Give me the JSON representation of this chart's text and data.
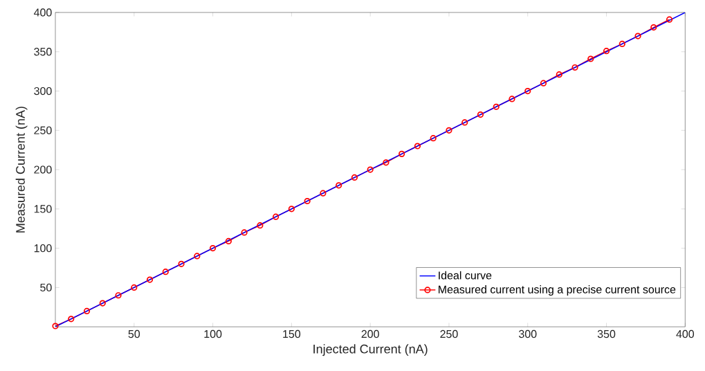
{
  "chart_data": {
    "type": "line",
    "xlabel": "Injected Current (nA)",
    "ylabel": "Measured Current (nA)",
    "xlim": [
      0,
      400
    ],
    "ylim": [
      0,
      400
    ],
    "xticks": [
      50,
      100,
      150,
      200,
      250,
      300,
      350,
      400
    ],
    "yticks": [
      50,
      100,
      150,
      200,
      250,
      300,
      350,
      400
    ],
    "grid": false,
    "legend": "bottom right",
    "line_style": "solid",
    "series": [
      {
        "name": "Ideal curve",
        "color": "#0000ff",
        "marker": "none",
        "x": [
          0,
          400
        ],
        "values": [
          0,
          400
        ]
      },
      {
        "name": "Measured current using a precise current source",
        "color": "#ff0000",
        "marker": "circle",
        "x": [
          0,
          10,
          20,
          30,
          40,
          50,
          60,
          70,
          80,
          90,
          100,
          110,
          120,
          130,
          140,
          150,
          160,
          170,
          180,
          190,
          200,
          210,
          220,
          230,
          240,
          250,
          260,
          270,
          280,
          290,
          300,
          310,
          320,
          330,
          340,
          350,
          360,
          370,
          380,
          390
        ],
        "values": [
          1,
          10,
          20,
          30,
          40,
          50,
          60,
          70,
          80,
          90,
          100,
          109,
          120,
          129,
          140,
          150,
          160,
          170,
          180,
          190,
          200,
          209,
          220,
          230,
          240,
          250,
          260,
          270,
          280,
          290,
          300,
          310,
          321,
          330,
          341,
          351,
          360,
          370,
          381,
          391
        ]
      }
    ]
  }
}
